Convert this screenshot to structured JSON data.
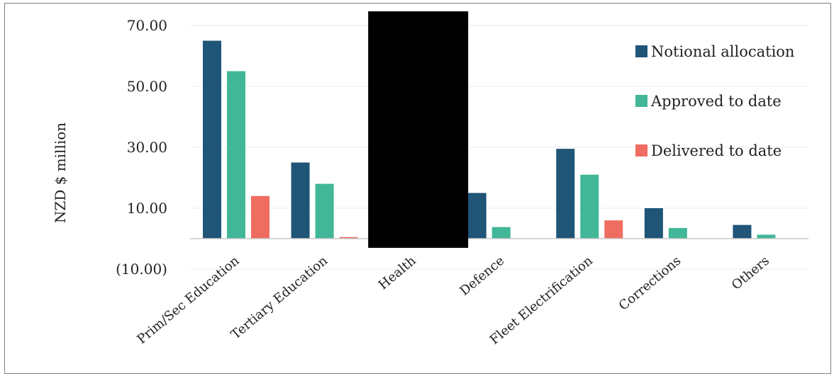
{
  "chart_data": {
    "type": "bar",
    "ylabel": "NZD $ million",
    "ylim": [
      -10,
      70
    ],
    "yticks": [
      {
        "value": 70,
        "label": "70.00"
      },
      {
        "value": 50,
        "label": "50.00"
      },
      {
        "value": 30,
        "label": "30.00"
      },
      {
        "value": 10,
        "label": "10.00"
      },
      {
        "value": -10,
        "label": "(10.00)"
      }
    ],
    "categories": [
      "Prim/Sec Education",
      "Tertiary Education",
      "Health",
      "Defence",
      "Fleet Electrification",
      "Corrections",
      "Others"
    ],
    "series": [
      {
        "name": "Notional allocation",
        "color": "#1f5577",
        "values": [
          65.0,
          25.0,
          null,
          15.0,
          29.5,
          10.0,
          4.5
        ]
      },
      {
        "name": "Approved to date",
        "color": "#41b797",
        "values": [
          55.0,
          18.0,
          null,
          3.8,
          21.0,
          3.5,
          1.3
        ]
      },
      {
        "name": "Delivered to date",
        "color": "#ef6c61",
        "values": [
          14.0,
          0.5,
          null,
          0.0,
          6.0,
          0.0,
          0.0
        ]
      }
    ],
    "legend_position": "top-right",
    "grid": true,
    "redaction": "black box covering the Health category"
  }
}
